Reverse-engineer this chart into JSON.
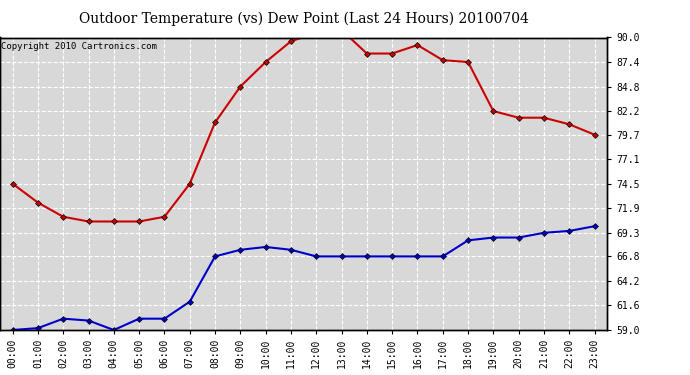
{
  "title": "Outdoor Temperature (vs) Dew Point (Last 24 Hours) 20100704",
  "copyright": "Copyright 2010 Cartronics.com",
  "x_labels": [
    "00:00",
    "01:00",
    "02:00",
    "03:00",
    "04:00",
    "05:00",
    "06:00",
    "07:00",
    "08:00",
    "09:00",
    "10:00",
    "11:00",
    "12:00",
    "13:00",
    "14:00",
    "15:00",
    "16:00",
    "17:00",
    "18:00",
    "19:00",
    "20:00",
    "21:00",
    "22:00",
    "23:00"
  ],
  "temp_red": [
    74.5,
    72.5,
    71.0,
    70.5,
    70.5,
    70.5,
    71.0,
    74.5,
    81.0,
    84.8,
    87.4,
    89.6,
    90.5,
    90.8,
    88.3,
    88.3,
    89.2,
    87.6,
    87.4,
    82.2,
    81.5,
    81.5,
    80.8,
    79.7
  ],
  "temp_blue": [
    59.0,
    59.2,
    60.2,
    60.0,
    59.0,
    60.2,
    60.2,
    62.0,
    66.8,
    67.5,
    67.8,
    67.5,
    66.8,
    66.8,
    66.8,
    66.8,
    66.8,
    66.8,
    68.5,
    68.8,
    68.8,
    69.3,
    69.5,
    70.0
  ],
  "ylim": [
    59.0,
    90.0
  ],
  "yticks": [
    59.0,
    61.6,
    64.2,
    66.8,
    69.3,
    71.9,
    74.5,
    77.1,
    79.7,
    82.2,
    84.8,
    87.4,
    90.0
  ],
  "red_color": "#cc0000",
  "blue_color": "#0000cc",
  "bg_color": "#ffffff",
  "plot_bg_color": "#d8d8d8",
  "grid_color": "#ffffff",
  "title_fontsize": 10,
  "copyright_fontsize": 6.5,
  "tick_fontsize": 7,
  "marker": "D",
  "marker_size": 3,
  "linewidth": 1.5
}
